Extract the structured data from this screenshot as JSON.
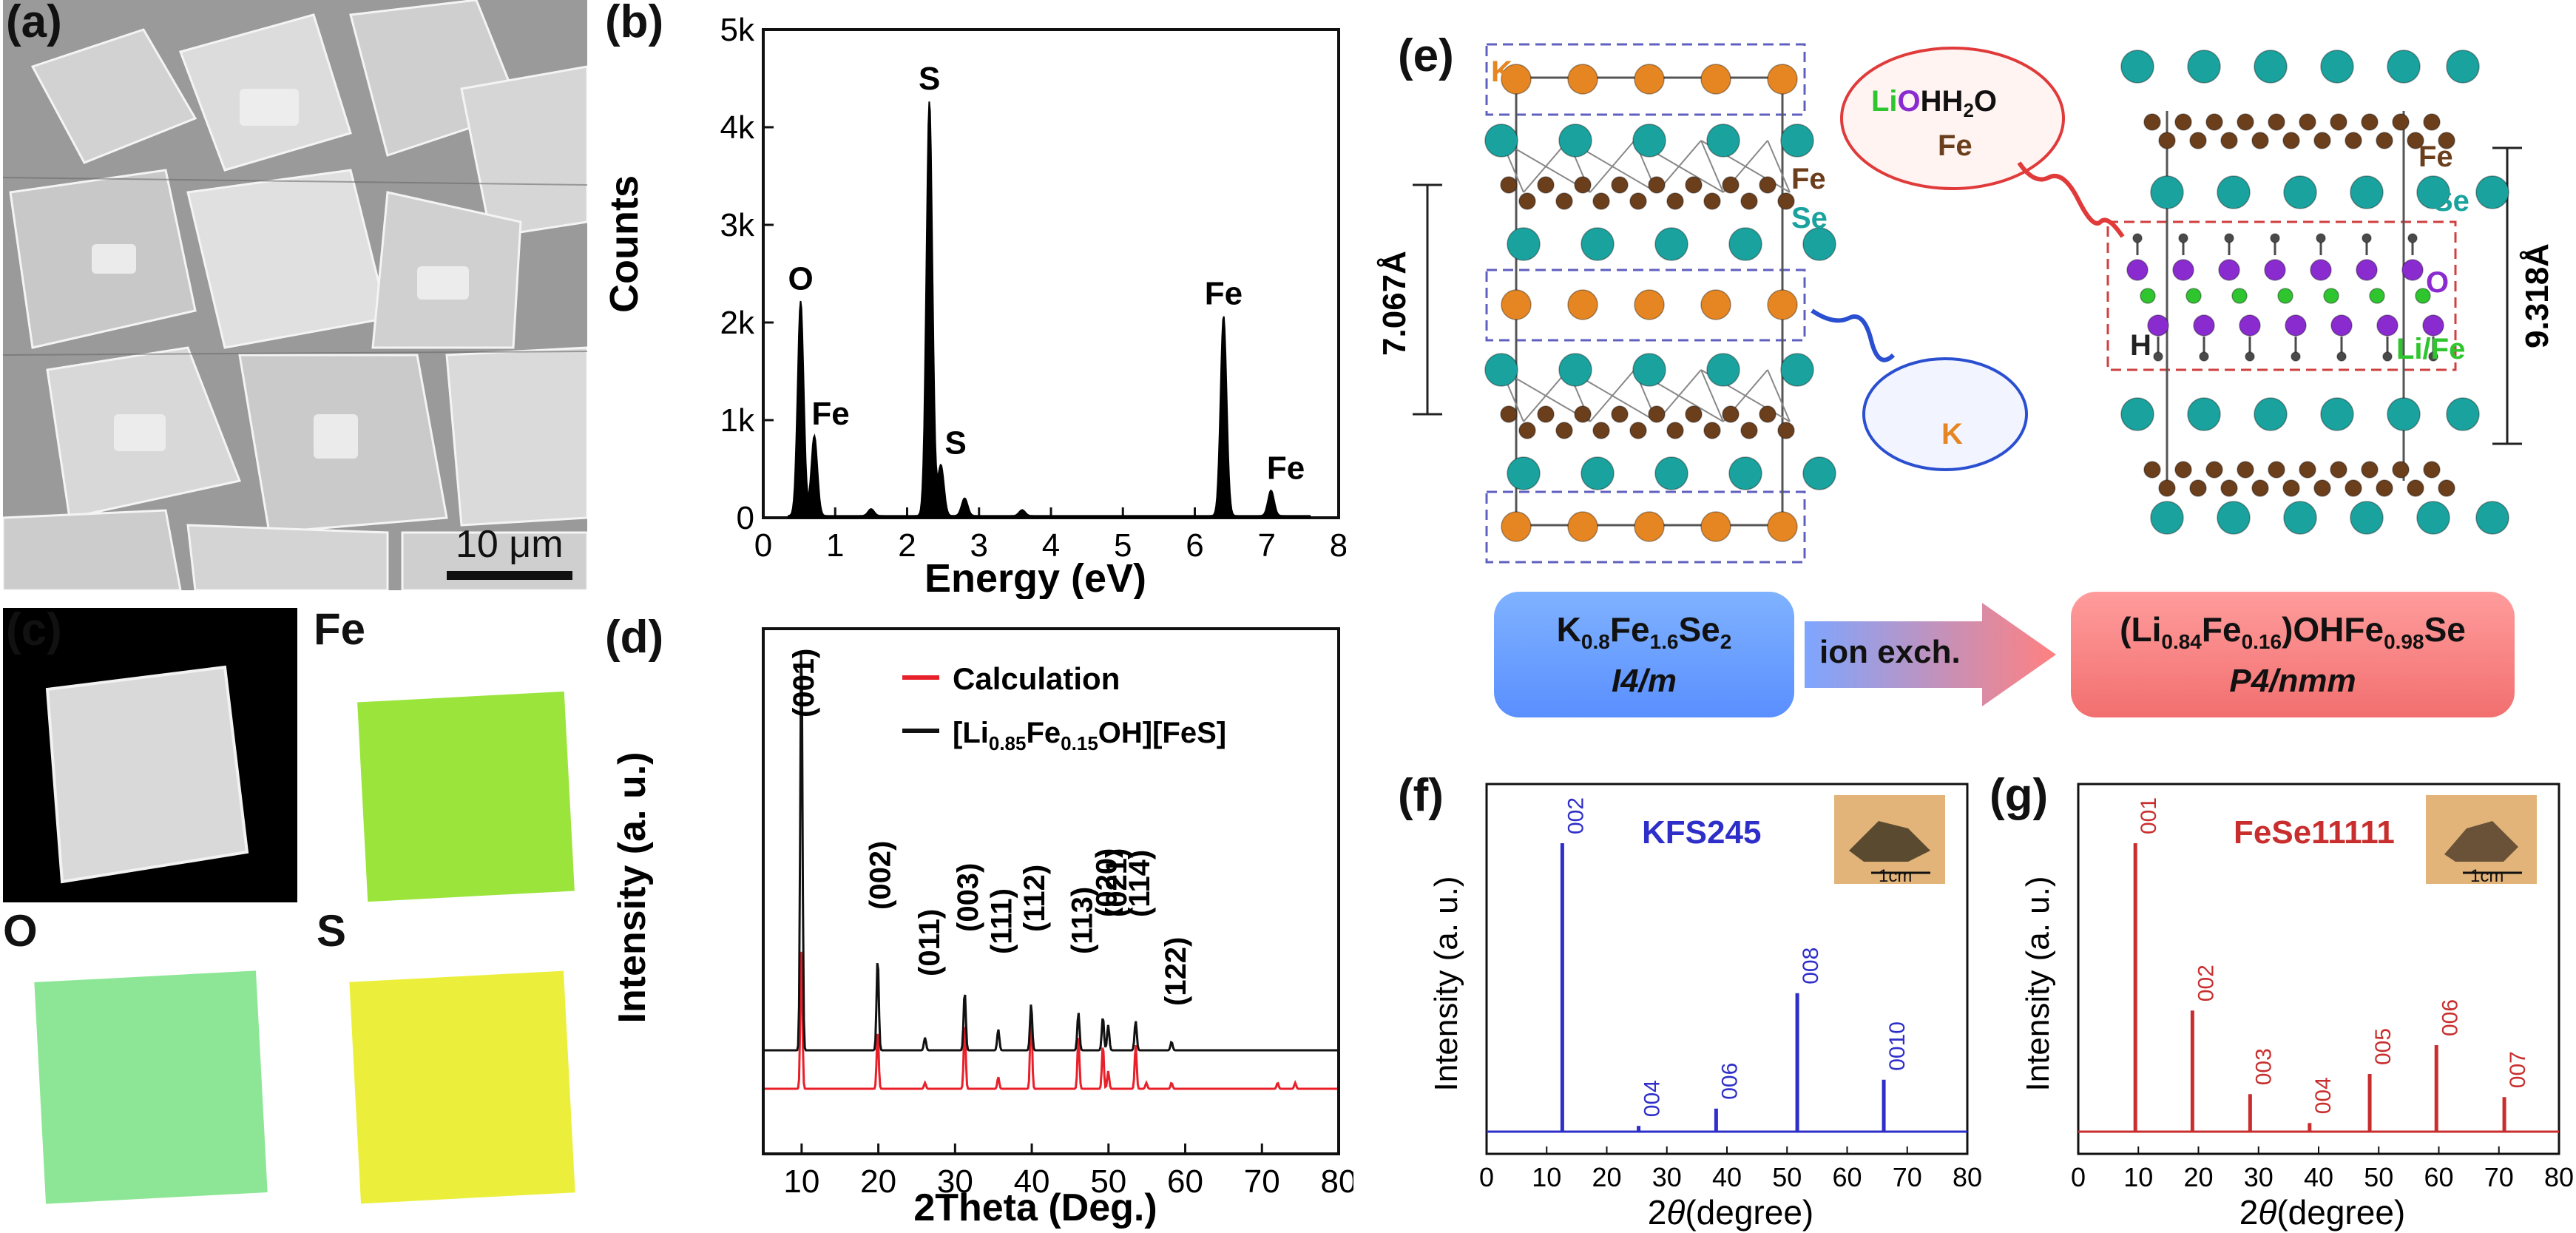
{
  "panels": {
    "a": "(a)",
    "b": "(b)",
    "c": "(c)",
    "d": "(d)",
    "e": "(e)",
    "f": "(f)",
    "g": "(g)"
  },
  "sem": {
    "scale_label": "10 μm"
  },
  "eds": {
    "colors": {
      "fill": "#000000",
      "axis": "#111111"
    },
    "chart_data": {
      "type": "line",
      "title": "",
      "xlabel": "Energy (eV)",
      "ylabel": "Counts",
      "xlim": [
        0,
        8
      ],
      "ylim": [
        0,
        5000
      ],
      "xticks": [
        "0",
        "1",
        "2",
        "3",
        "4",
        "5",
        "6",
        "7",
        "8"
      ],
      "yticks": [
        "0",
        "1k",
        "2k",
        "3k",
        "4k",
        "5k"
      ],
      "peaks": [
        {
          "label": "O",
          "x": 0.52,
          "y": 2200
        },
        {
          "label": "Fe",
          "x": 0.71,
          "y": 820
        },
        {
          "label": "S",
          "x": 2.31,
          "y": 4250
        },
        {
          "label": "S",
          "x": 2.47,
          "y": 520
        },
        {
          "label": "Fe",
          "x": 6.4,
          "y": 2050
        },
        {
          "label": "Fe",
          "x": 7.06,
          "y": 260
        }
      ]
    }
  },
  "maps": {
    "fe": "Fe",
    "o": "O",
    "s": "S",
    "colors": {
      "fe": "#8adf1a",
      "o": "#6fe07a",
      "s": "#e8ec1a"
    }
  },
  "xrd": {
    "colors": {
      "calc": "#e8202a",
      "exp": "#111111"
    },
    "legend": {
      "calc": "Calculation",
      "exp_pre": "[Li",
      "exp_sub1": "0.85",
      "exp_mid": "Fe",
      "exp_sub2": "0.15",
      "exp_post": "OH][FeS]"
    },
    "chart_data": {
      "type": "line",
      "xlabel": "2Theta (Deg.)",
      "ylabel": "Intensity (a. u.)",
      "xlim": [
        5,
        80
      ],
      "xticks": [
        "10",
        "20",
        "30",
        "40",
        "50",
        "60",
        "70",
        "80"
      ],
      "series": [
        {
          "name": "Calculation",
          "peaks": [
            {
              "x": 9.8,
              "y": 100
            },
            {
              "x": 19.8,
              "y": 40
            },
            {
              "x": 26.0,
              "y": 4
            },
            {
              "x": 31.2,
              "y": 45
            },
            {
              "x": 35.6,
              "y": 8
            },
            {
              "x": 39.9,
              "y": 55
            },
            {
              "x": 46.1,
              "y": 35
            },
            {
              "x": 49.3,
              "y": 30
            },
            {
              "x": 50.0,
              "y": 12
            },
            {
              "x": 53.6,
              "y": 30
            },
            {
              "x": 55.0,
              "y": 4
            },
            {
              "x": 58.3,
              "y": 4
            },
            {
              "x": 72.2,
              "y": 4
            },
            {
              "x": 74.5,
              "y": 4
            }
          ]
        },
        {
          "name": "[Li0.85Fe0.15OH][FeS]",
          "peaks": [
            {
              "x": 9.8,
              "y": 100
            },
            {
              "x": 19.8,
              "y": 22
            },
            {
              "x": 26.0,
              "y": 3
            },
            {
              "x": 31.2,
              "y": 14
            },
            {
              "x": 35.6,
              "y": 5
            },
            {
              "x": 39.9,
              "y": 11
            },
            {
              "x": 46.1,
              "y": 9
            },
            {
              "x": 49.3,
              "y": 8
            },
            {
              "x": 50.0,
              "y": 6
            },
            {
              "x": 53.6,
              "y": 7
            },
            {
              "x": 58.3,
              "y": 2
            }
          ]
        }
      ],
      "peak_labels": [
        "(001)",
        "(002)",
        "(011)",
        "(003)",
        "(111)",
        "(112)",
        "(113)",
        "(020)",
        "(021)",
        "(114)",
        "(122)"
      ]
    }
  },
  "structure": {
    "left_labels": {
      "k": "K",
      "fe": "Fe",
      "se": "Se",
      "spacing": "7.067Å"
    },
    "right_labels": {
      "fe": "Fe",
      "se": "Se",
      "o": "O",
      "h": "H",
      "lifee": "Li/Fe",
      "spacing": "9.318Å"
    },
    "bubble_top": {
      "li": "Li",
      "o": "O",
      "hh2o": "HH",
      "sub": "2",
      "o2": "O",
      "fe": "Fe"
    },
    "bubble_bottom": {
      "k": "K"
    },
    "box_left": {
      "k": "K",
      "k_sub": "0.8",
      "fe": "Fe",
      "fe_sub": "1.6",
      "se": "Se",
      "se_sub": "2",
      "group": "I4/m"
    },
    "arrow": "ion exch.",
    "box_right": {
      "open": "(Li",
      "li_sub": "0.84",
      "fe": "Fe",
      "fe_sub": "0.16",
      "oh": ")OHFe",
      "fe2_sub": "0.98",
      "se": "Se",
      "group": "P4/nmm"
    },
    "colors": {
      "fe": "#6b3e1c",
      "se": "#1aa39e",
      "k": "#e58622",
      "o": "#8a2bd0",
      "li": "#2ec52e",
      "h": "#4a4a4a"
    }
  },
  "xrd_f": {
    "label": "KFS245",
    "inset_scale": "1cm",
    "colors": {
      "line": "#2e2ec9"
    },
    "chart_data": {
      "type": "line",
      "xlabel_theta": "2",
      "xlabel_sym": "θ",
      "xlabel_unit": "(degree)",
      "ylabel": "Intensity (a. u.)",
      "xlim": [
        0,
        80
      ],
      "xticks": [
        "0",
        "10",
        "20",
        "30",
        "40",
        "50",
        "60",
        "70",
        "80"
      ],
      "peaks": [
        {
          "label": "002",
          "x": 12.6,
          "y": 100
        },
        {
          "label": "004",
          "x": 25.3,
          "y": 2
        },
        {
          "label": "006",
          "x": 38.2,
          "y": 8
        },
        {
          "label": "008",
          "x": 51.7,
          "y": 48
        },
        {
          "label": "0010",
          "x": 66.1,
          "y": 18
        }
      ]
    }
  },
  "xrd_g": {
    "label": "FeSe11111",
    "inset_scale": "1cm",
    "colors": {
      "line": "#c92e2e"
    },
    "chart_data": {
      "type": "line",
      "xlabel_theta": "2",
      "xlabel_sym": "θ",
      "xlabel_unit": "(degree)",
      "ylabel": "Intensity (a. u.)",
      "xlim": [
        0,
        80
      ],
      "xticks": [
        "0",
        "10",
        "20",
        "30",
        "40",
        "50",
        "60",
        "70",
        "80"
      ],
      "peaks": [
        {
          "label": "001",
          "x": 9.5,
          "y": 100
        },
        {
          "label": "002",
          "x": 19.0,
          "y": 42
        },
        {
          "label": "003",
          "x": 28.6,
          "y": 13
        },
        {
          "label": "004",
          "x": 38.5,
          "y": 3
        },
        {
          "label": "005",
          "x": 48.5,
          "y": 20
        },
        {
          "label": "006",
          "x": 59.6,
          "y": 30
        },
        {
          "label": "007",
          "x": 70.9,
          "y": 12
        }
      ]
    }
  }
}
